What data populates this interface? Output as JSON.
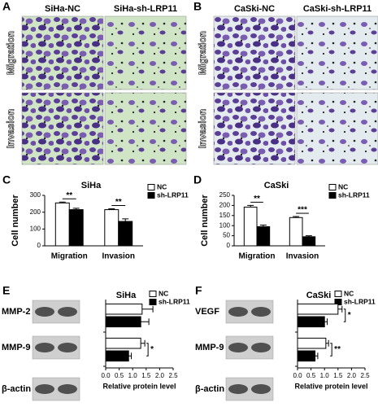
{
  "figure": {
    "panel_letters": [
      "A",
      "B",
      "C",
      "D",
      "E",
      "F"
    ],
    "image_panels": [
      {
        "columns": [
          "SiHa-NC",
          "SiHa-sh-LRP11"
        ],
        "rows": [
          "Migration",
          "Invasion"
        ]
      },
      {
        "columns": [
          "CaSki-NC",
          "CaSki-sh-LRP11"
        ],
        "rows": [
          "Migration",
          "Invasion"
        ]
      }
    ],
    "blots": [
      {
        "bands": [
          "MMP-2",
          "MMP-9",
          "β-actin"
        ]
      },
      {
        "bands": [
          "VEGF",
          "MMP-9",
          "β-actin"
        ]
      }
    ]
  },
  "chart_data": [
    {
      "type": "bar",
      "title": "SiHa",
      "y_label": "Cell number",
      "categories": [
        "Migration",
        "Invasion"
      ],
      "series": [
        {
          "name": "NC",
          "color": "#ffffff",
          "values": [
            255,
            215
          ],
          "errors": [
            5,
            5
          ]
        },
        {
          "name": "sh-LRP11",
          "color": "#000000",
          "values": [
            215,
            145
          ],
          "errors": [
            8,
            15
          ]
        }
      ],
      "ylim": [
        0,
        300
      ],
      "yticks": [
        0,
        100,
        200,
        300
      ],
      "annotations": [
        "**",
        "**"
      ]
    },
    {
      "type": "bar",
      "title": "CaSki",
      "y_label": "Cell number",
      "categories": [
        "Migration",
        "Invasion"
      ],
      "series": [
        {
          "name": "NC",
          "color": "#ffffff",
          "values": [
            192,
            140
          ],
          "errors": [
            8,
            5
          ]
        },
        {
          "name": "sh-LRP11",
          "color": "#000000",
          "values": [
            95,
            45
          ],
          "errors": [
            8,
            5
          ]
        }
      ],
      "ylim": [
        0,
        250
      ],
      "yticks": [
        0,
        50,
        100,
        150,
        200,
        250
      ],
      "annotations": [
        "**",
        "***"
      ]
    },
    {
      "type": "barh",
      "title": "SiHa",
      "x_label": "Relative protein level",
      "categories": [
        "MMP-2",
        "MMP-9"
      ],
      "series": [
        {
          "name": "NC",
          "color": "#ffffff",
          "values": [
            1.35,
            1.3
          ],
          "errors": [
            0.4,
            0.15
          ]
        },
        {
          "name": "sh-LRP11",
          "color": "#000000",
          "values": [
            1.3,
            0.85
          ],
          "errors": [
            0.3,
            0.1
          ]
        }
      ],
      "xlim": [
        0,
        2.5
      ],
      "xticks": [
        {
          "value": 0,
          "label": "0.0"
        },
        {
          "value": 0.5,
          "label": "0.5"
        },
        {
          "value": 1,
          "label": "1.0"
        },
        {
          "value": 1.5,
          "label": "1.5"
        },
        {
          "value": 2,
          "label": "2.0"
        },
        {
          "value": 2.5,
          "label": "2.5"
        }
      ],
      "annotations": [
        null,
        "*"
      ]
    },
    {
      "type": "barh",
      "title": "CaSki",
      "x_label": "Relative protein level",
      "categories": [
        "VEGF",
        "MMP-9"
      ],
      "series": [
        {
          "name": "NC",
          "color": "#ffffff",
          "values": [
            1.5,
            1.05
          ],
          "errors": [
            0.15,
            0.1
          ]
        },
        {
          "name": "sh-LRP11",
          "color": "#000000",
          "values": [
            1.0,
            0.65
          ],
          "errors": [
            0.1,
            0.1
          ]
        }
      ],
      "xlim": [
        0,
        2.5
      ],
      "xticks": [
        {
          "value": 0,
          "label": "0.0"
        },
        {
          "value": 0.5,
          "label": "0.5"
        },
        {
          "value": 1,
          "label": "1.0"
        },
        {
          "value": 1.5,
          "label": "1.5"
        },
        {
          "value": 2,
          "label": "2.0"
        },
        {
          "value": 2.5,
          "label": "2.5"
        }
      ],
      "annotations": [
        "*",
        "**"
      ]
    }
  ]
}
